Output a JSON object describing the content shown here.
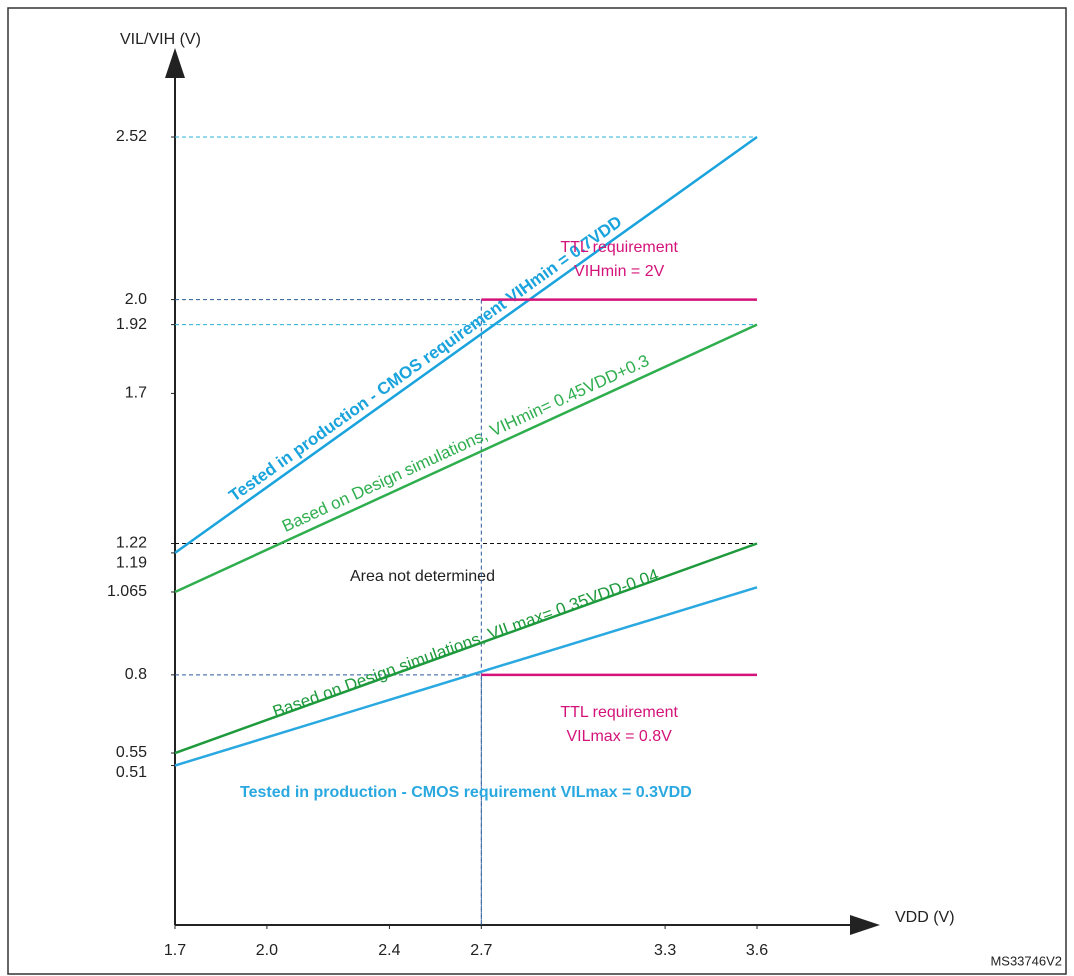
{
  "chart_data": {
    "type": "line",
    "x_label": "VDD (V)",
    "y_label": "VIL/VIH (V)",
    "xlim": [
      1.7,
      3.6
    ],
    "ylim": [
      0,
      2.52
    ],
    "xticks": [
      1.7,
      {
        "value": 2,
        "label": "2.0"
      },
      2.4,
      2.7,
      3.3,
      3.6
    ],
    "yticks": [
      0.51,
      0.55,
      0.8,
      1.065,
      1.19,
      1.22,
      1.7,
      1.92,
      {
        "value": 2,
        "label": "2.0"
      },
      2.52
    ],
    "series": [
      {
        "label": "Tested in production  - CMOS requirement VIHmin = 0.7VDD",
        "color": "#1aa3dc",
        "x": [
          1.7,
          3.6
        ],
        "values": [
          1.19,
          2.52
        ]
      },
      {
        "label": "Based on Design simulations, VIHmin= 0.45VDD+0.3",
        "color": "#2fae4e",
        "x": [
          1.7,
          3.6
        ],
        "values": [
          1.065,
          1.92
        ]
      },
      {
        "label": [
          "TTL requirement",
          "VIHmin = 2V"
        ],
        "color": "#d4137a",
        "x": [
          2.7,
          3.6
        ],
        "values": [
          2,
          2
        ]
      },
      {
        "label": "Based on Design simulations, VILmax= 0.35VDD-0.04",
        "color": "#1e9a3c",
        "x": [
          1.7,
          3.6
        ],
        "values": [
          0.55,
          1.22
        ]
      },
      {
        "label": "Tested in production  - CMOS requirement VILmax = 0.3VDD",
        "color": "#2aa8e0",
        "x": [
          1.7,
          3.6
        ],
        "values": [
          0.51,
          1.08
        ]
      },
      {
        "label": [
          "TTL requirement",
          "VILmax = 0.8V"
        ],
        "color": "#d4137a",
        "x": [
          2.7,
          3.6
        ],
        "values": [
          0.8,
          0.8
        ]
      }
    ],
    "annotations": [
      "Area not determined",
      "MS33746V2"
    ]
  }
}
